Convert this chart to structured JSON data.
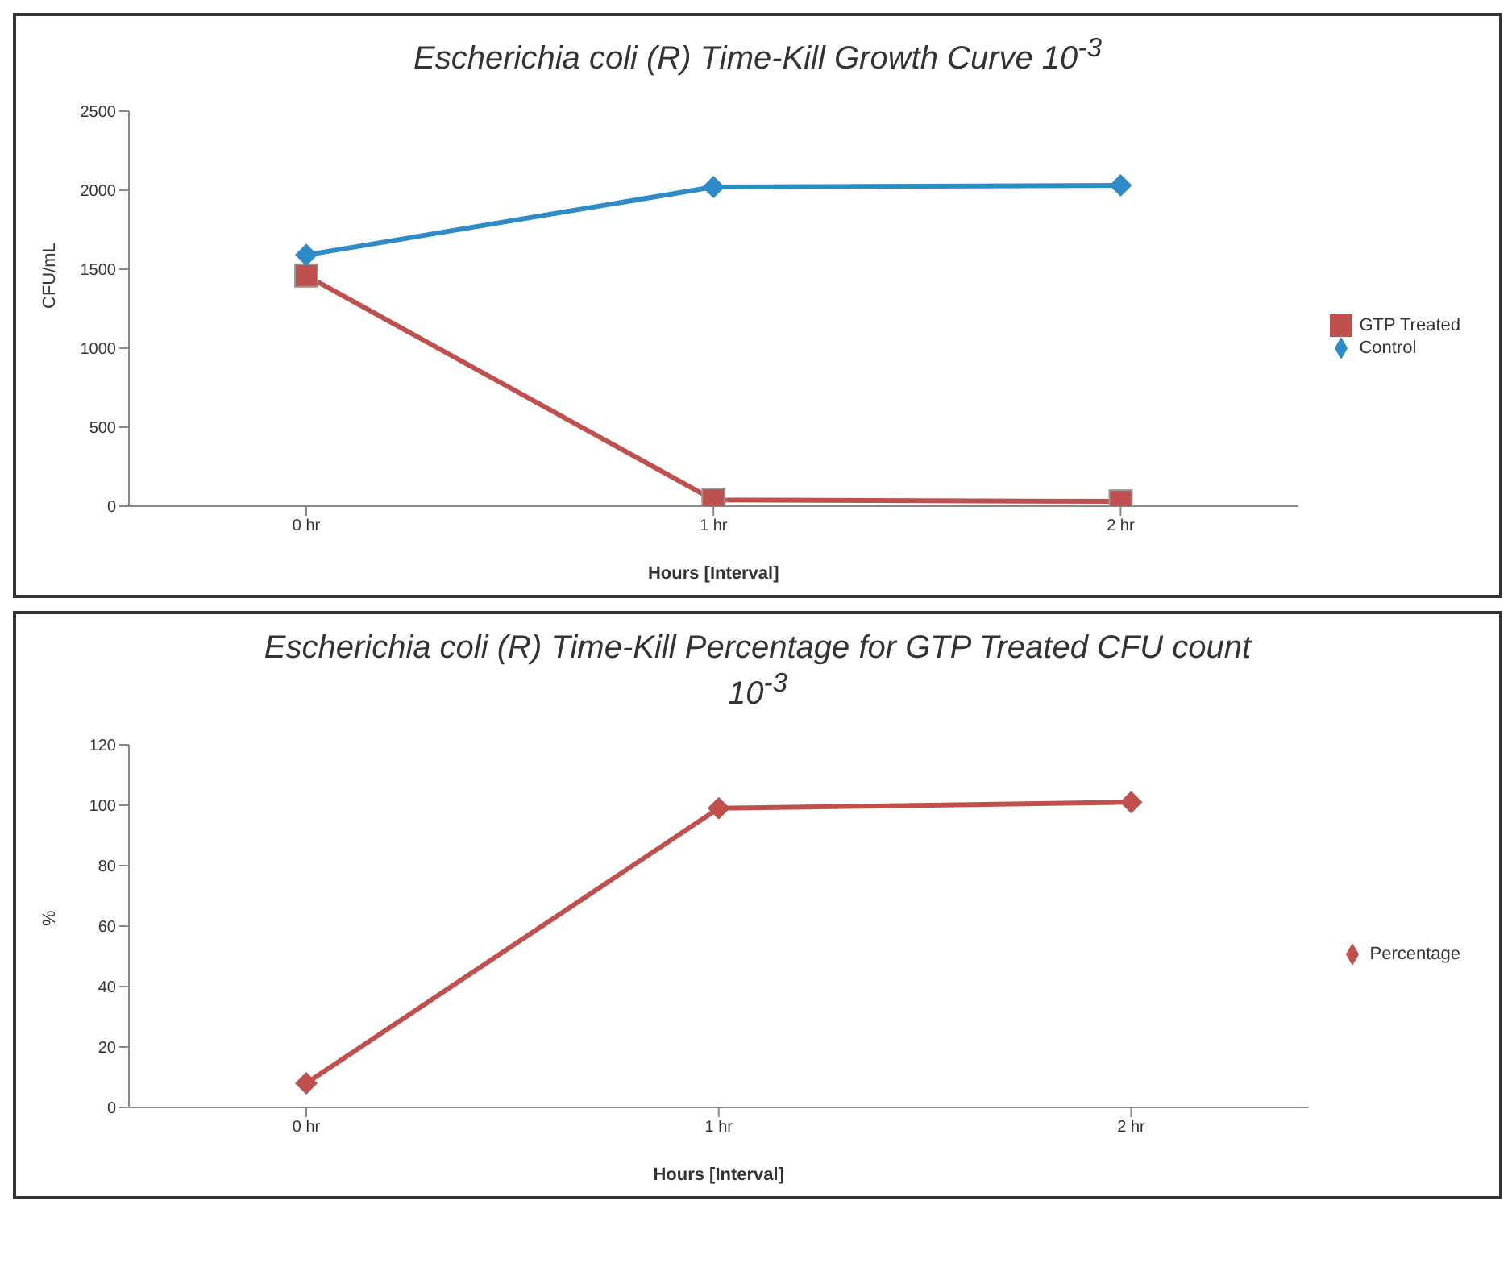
{
  "chart_data": [
    {
      "type": "line",
      "title": "Escherichia coli (R) Time-Kill Growth Curve 10$^{-3}$",
      "xlabel": "Hours [Interval]",
      "ylabel": "CFU/mL",
      "categories": [
        "0 hr",
        "1 hr",
        "2 hr"
      ],
      "ylim": [
        0,
        2500
      ],
      "yticks": [
        0,
        500,
        1000,
        1500,
        2000,
        2500
      ],
      "grid": false,
      "legend": "right",
      "series": [
        {
          "name": "GTP Treated",
          "color": "#c0504d",
          "values": [
            1460,
            40,
            30
          ],
          "marker": "square"
        },
        {
          "name": "Control",
          "color": "#2e8bc9",
          "values": [
            1590,
            2020,
            2030
          ],
          "marker": "diamond"
        }
      ]
    },
    {
      "type": "line",
      "title": "Escherichia coli (R) Time-Kill Percentage for GTP Treated CFU count 10$^{-3}$",
      "xlabel": "Hours [Interval]",
      "ylabel": "%",
      "categories": [
        "0 hr",
        "1 hr",
        "2 hr"
      ],
      "ylim": [
        0,
        120
      ],
      "yticks": [
        0,
        20,
        40,
        60,
        80,
        100,
        120
      ],
      "grid": false,
      "legend": "right",
      "series": [
        {
          "name": "Percentage",
          "color": "#c0504d",
          "values": [
            8,
            99,
            101
          ],
          "marker": "diamond"
        }
      ]
    }
  ]
}
